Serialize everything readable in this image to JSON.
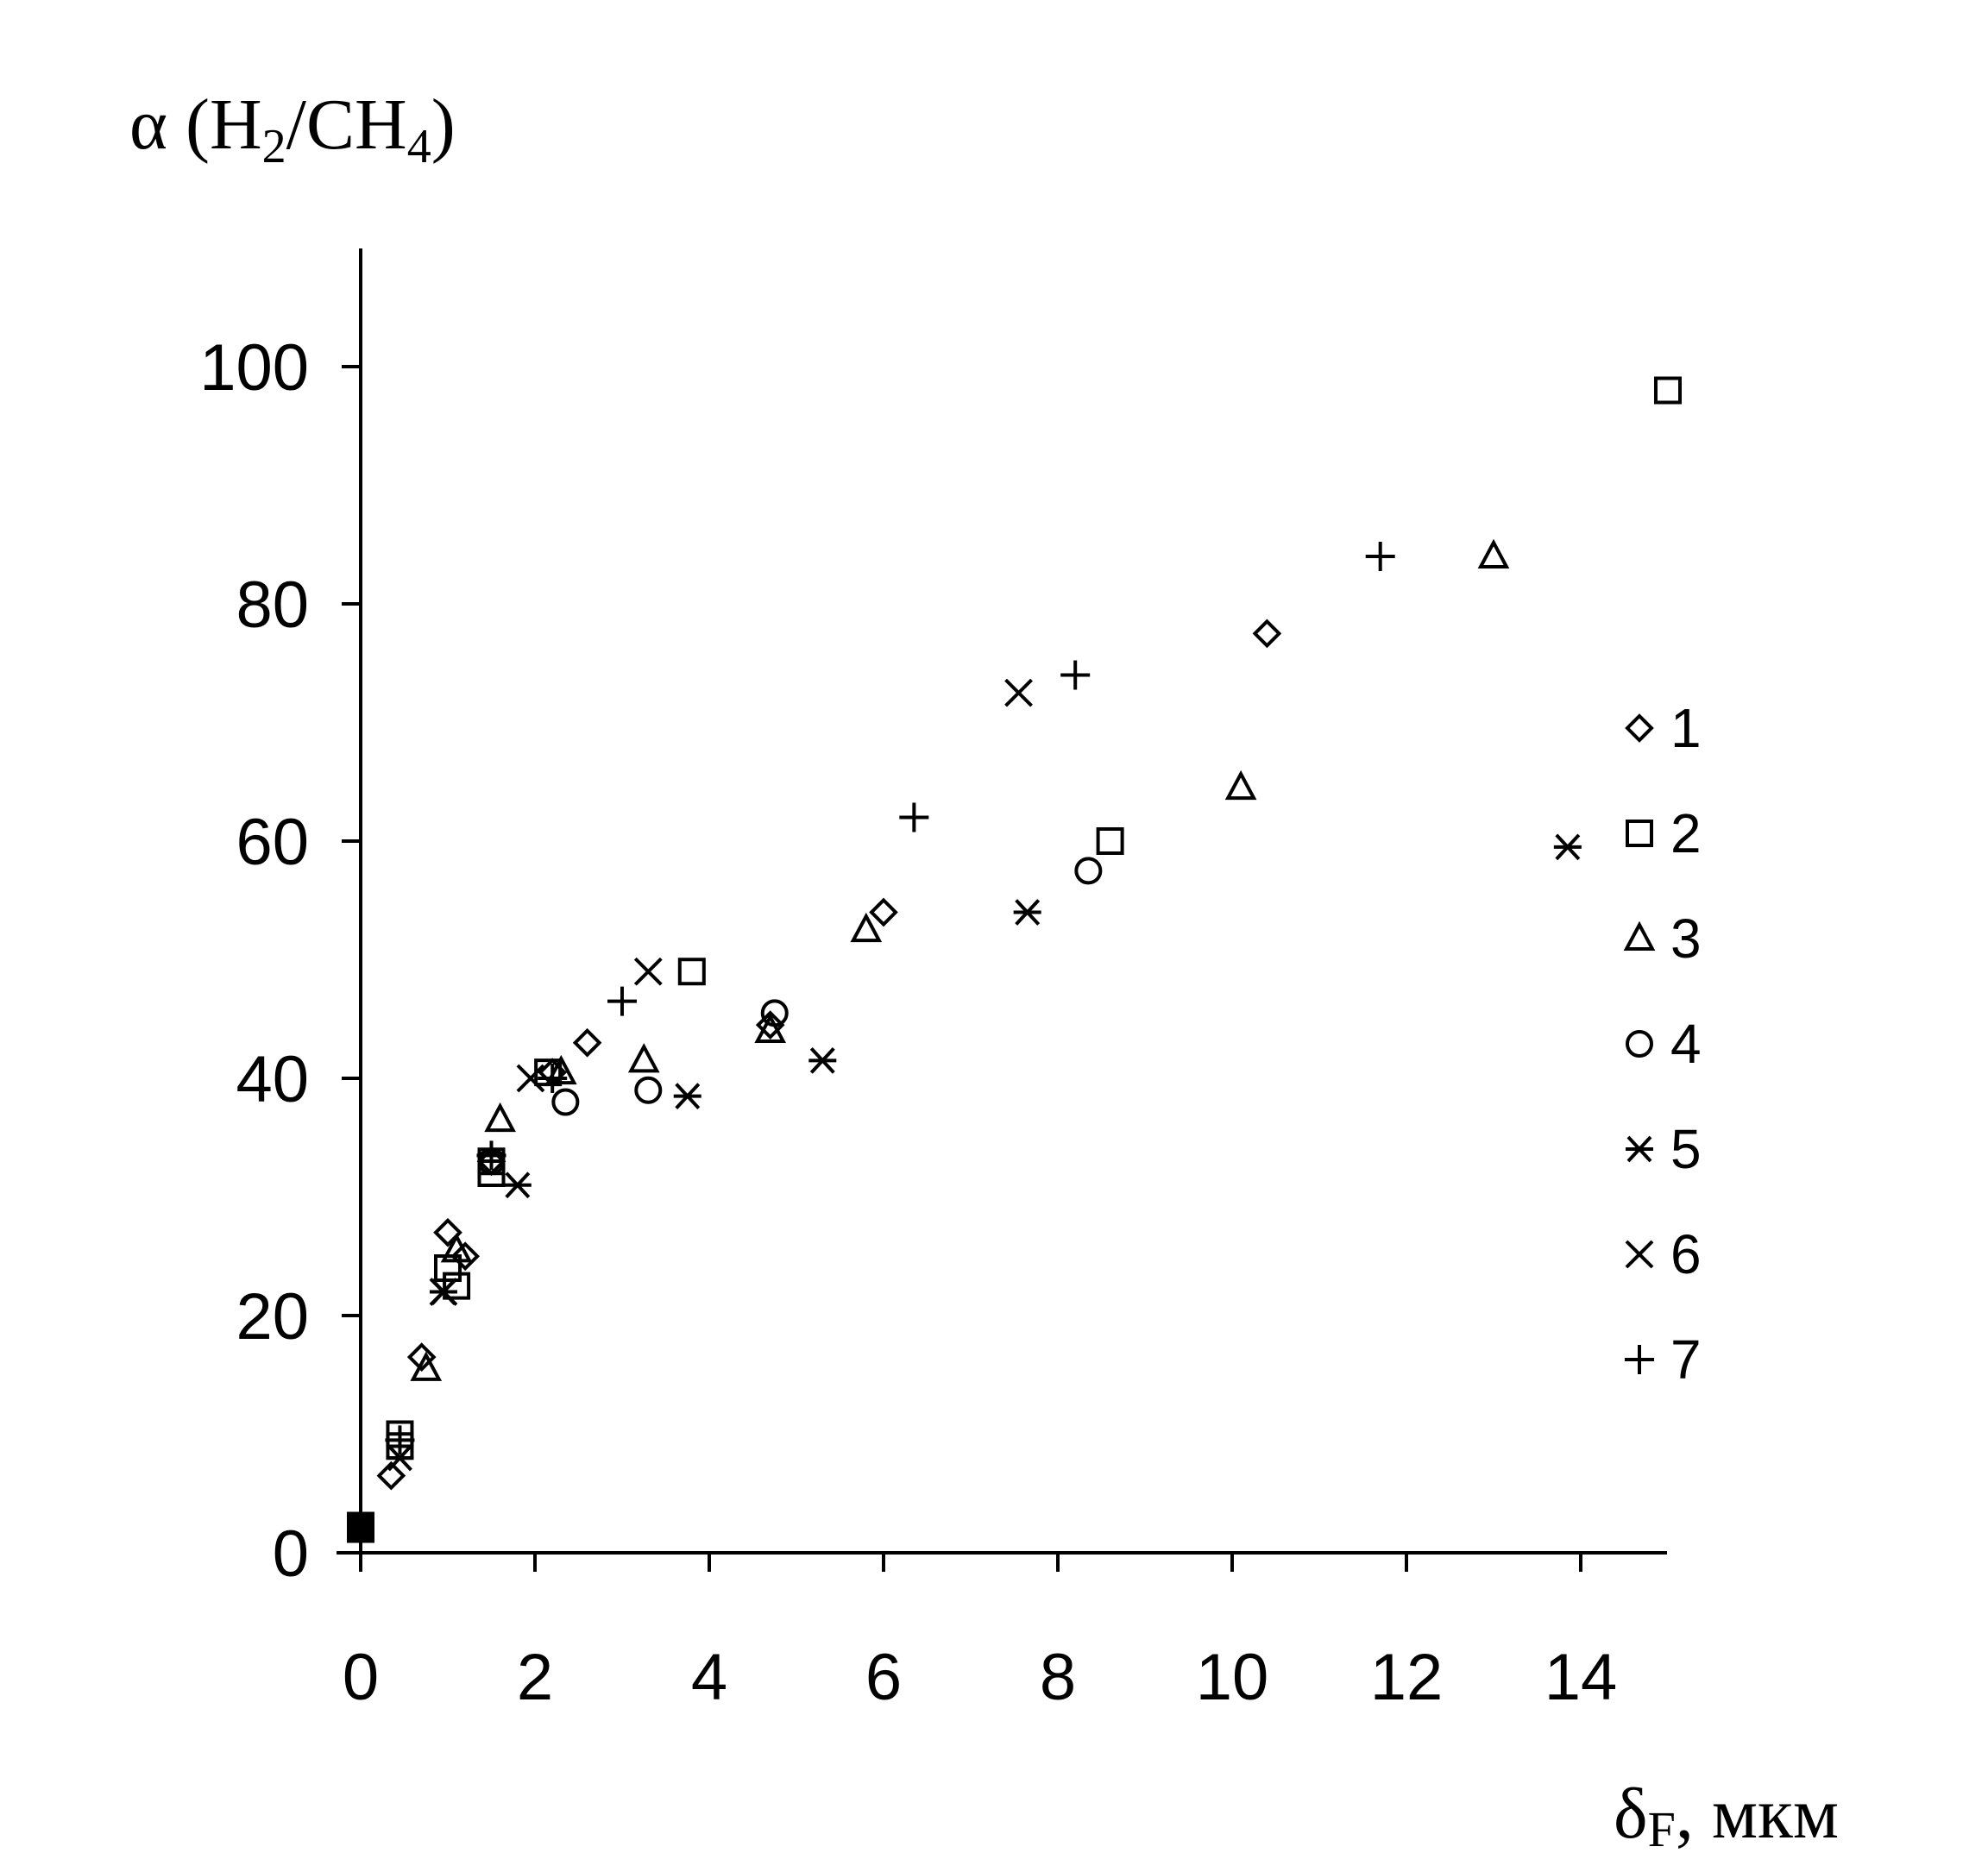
{
  "chart_data": {
    "type": "scatter",
    "title": "",
    "ylabel": {
      "symbol": "α",
      "open": " (H",
      "sub1": "2",
      "mid": "/CH",
      "sub2": "4",
      "close": ")"
    },
    "xlabel": {
      "symbol": "δ",
      "sub": "F",
      "rest": ", мкм"
    },
    "xlim": [
      0,
      15
    ],
    "ylim": [
      0,
      110
    ],
    "xticks": [
      0,
      2,
      4,
      6,
      8,
      10,
      12,
      14
    ],
    "yticks": [
      0,
      20,
      40,
      60,
      80,
      100
    ],
    "grid": false,
    "legend_position": "right",
    "origin_point": {
      "x": 0,
      "y": 2
    },
    "series": [
      {
        "name": "1",
        "marker": "diamond",
        "points": [
          [
            0.35,
            6.5
          ],
          [
            0.7,
            16.5
          ],
          [
            1.0,
            27
          ],
          [
            1.2,
            25
          ],
          [
            1.5,
            33
          ],
          [
            2.2,
            40.5
          ],
          [
            2.6,
            43
          ],
          [
            4.7,
            44.5
          ],
          [
            6.0,
            54
          ],
          [
            10.4,
            77.5
          ]
        ]
      },
      {
        "name": "2",
        "marker": "square",
        "points": [
          [
            0.45,
            10
          ],
          [
            0.45,
            9
          ],
          [
            1.0,
            24
          ],
          [
            1.1,
            22.5
          ],
          [
            1.5,
            33
          ],
          [
            1.5,
            32
          ],
          [
            2.15,
            40.5
          ],
          [
            3.8,
            49
          ],
          [
            8.6,
            60
          ],
          [
            15.0,
            98
          ]
        ]
      },
      {
        "name": "3",
        "marker": "triangle",
        "points": [
          [
            0.75,
            15.5
          ],
          [
            1.1,
            25.5
          ],
          [
            1.6,
            36.5
          ],
          [
            2.3,
            40.5
          ],
          [
            3.25,
            41.5
          ],
          [
            4.7,
            44
          ],
          [
            5.8,
            52.5
          ],
          [
            10.1,
            64.5
          ],
          [
            13.0,
            84
          ]
        ]
      },
      {
        "name": "4",
        "marker": "circle",
        "points": [
          [
            1.5,
            33
          ],
          [
            2.35,
            38
          ],
          [
            3.3,
            39
          ],
          [
            4.75,
            45.5
          ],
          [
            8.35,
            57.5
          ]
        ]
      },
      {
        "name": "5",
        "marker": "asterisk",
        "points": [
          [
            0.45,
            8
          ],
          [
            0.95,
            22
          ],
          [
            1.8,
            31
          ],
          [
            3.75,
            38.5
          ],
          [
            5.3,
            41.5
          ],
          [
            7.65,
            54
          ],
          [
            13.85,
            59.5
          ]
        ]
      },
      {
        "name": "6",
        "marker": "cross",
        "points": [
          [
            0.95,
            22
          ],
          [
            1.95,
            40
          ],
          [
            3.3,
            49
          ],
          [
            7.55,
            72.5
          ]
        ]
      },
      {
        "name": "7",
        "marker": "plus",
        "points": [
          [
            0.45,
            9.5
          ],
          [
            1.5,
            33.5
          ],
          [
            2.2,
            40
          ],
          [
            3.0,
            46.5
          ],
          [
            6.35,
            62
          ],
          [
            8.2,
            74
          ],
          [
            11.7,
            84
          ]
        ]
      }
    ]
  }
}
